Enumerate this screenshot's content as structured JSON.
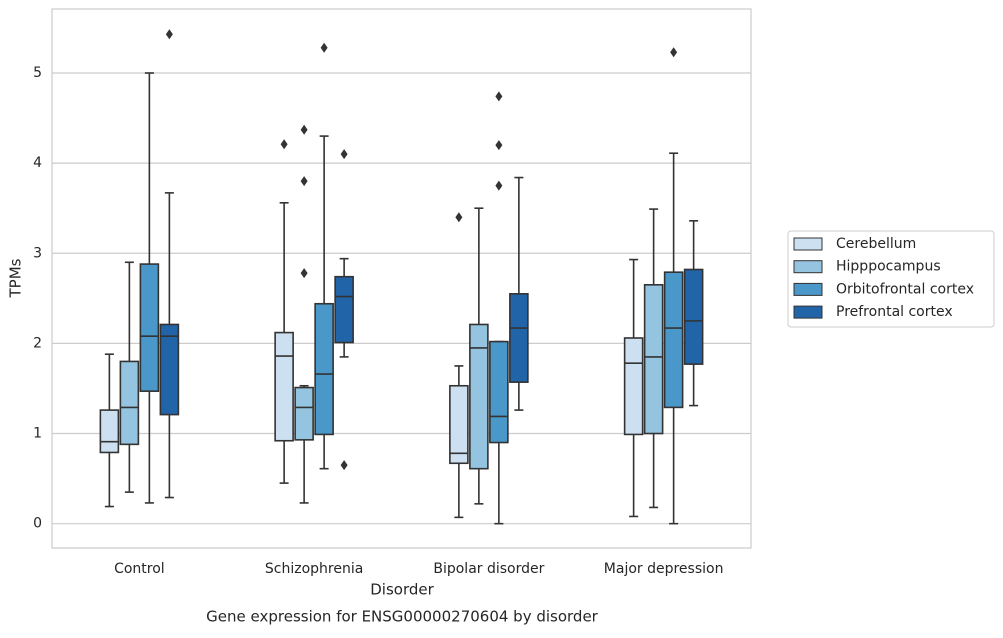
{
  "chart_data": {
    "type": "box",
    "title": "Gene expression for ENSG00000270604 by disorder",
    "xlabel": "Disorder",
    "ylabel": "TPMs",
    "categories": [
      "Control",
      "Schizophrenia",
      "Bipolar disorder",
      "Major depression"
    ],
    "ylim": [
      -0.27,
      5.71
    ],
    "yticks": [
      0,
      1,
      2,
      3,
      4,
      5
    ],
    "grid": true,
    "legend": "right",
    "series": [
      {
        "name": "Cerebellum",
        "color": "#cde0f1",
        "whislo": [
          0.19,
          0.45,
          0.07,
          0.08
        ],
        "q1": [
          0.79,
          0.92,
          0.67,
          0.99
        ],
        "median": [
          0.91,
          1.86,
          0.78,
          1.78
        ],
        "q3": [
          1.26,
          2.12,
          1.53,
          2.06
        ],
        "whishi": [
          1.88,
          3.56,
          1.75,
          2.93
        ],
        "outliers": [
          [],
          [
            4.21
          ],
          [
            3.4
          ],
          []
        ]
      },
      {
        "name": "Hipppocampus",
        "color": "#94c4df",
        "whislo": [
          0.35,
          0.23,
          0.22,
          0.18
        ],
        "q1": [
          0.88,
          0.93,
          0.61,
          1.0
        ],
        "median": [
          1.29,
          1.29,
          1.95,
          1.85
        ],
        "q3": [
          1.8,
          1.51,
          2.21,
          2.65
        ],
        "whishi": [
          2.9,
          1.53,
          3.5,
          3.49
        ],
        "outliers": [
          [],
          [
            4.37,
            3.8,
            2.78
          ],
          [],
          []
        ]
      },
      {
        "name": "Orbitofrontal cortex",
        "color": "#4a97c9",
        "whislo": [
          0.23,
          0.61,
          0,
          0
        ],
        "q1": [
          1.47,
          0.99,
          0.9,
          1.29
        ],
        "median": [
          2.08,
          1.66,
          1.19,
          2.17
        ],
        "q3": [
          2.88,
          2.44,
          2.02,
          2.79
        ],
        "whishi": [
          5.0,
          4.3,
          2.02,
          4.11
        ],
        "outliers": [
          [],
          [
            5.28
          ],
          [
            4.74,
            4.2,
            3.75
          ],
          [
            5.23
          ]
        ]
      },
      {
        "name": "Prefrontal cortex",
        "color": "#2264a8",
        "whislo": [
          0.29,
          1.85,
          1.26,
          1.31
        ],
        "q1": [
          1.21,
          2.01,
          1.57,
          1.77
        ],
        "median": [
          2.08,
          2.52,
          2.17,
          2.25
        ],
        "q3": [
          2.21,
          2.74,
          2.55,
          2.82
        ],
        "whishi": [
          3.67,
          2.94,
          3.84,
          3.36
        ],
        "outliers": [
          [
            5.43
          ],
          [
            4.1,
            0.65
          ],
          [],
          []
        ]
      }
    ]
  }
}
